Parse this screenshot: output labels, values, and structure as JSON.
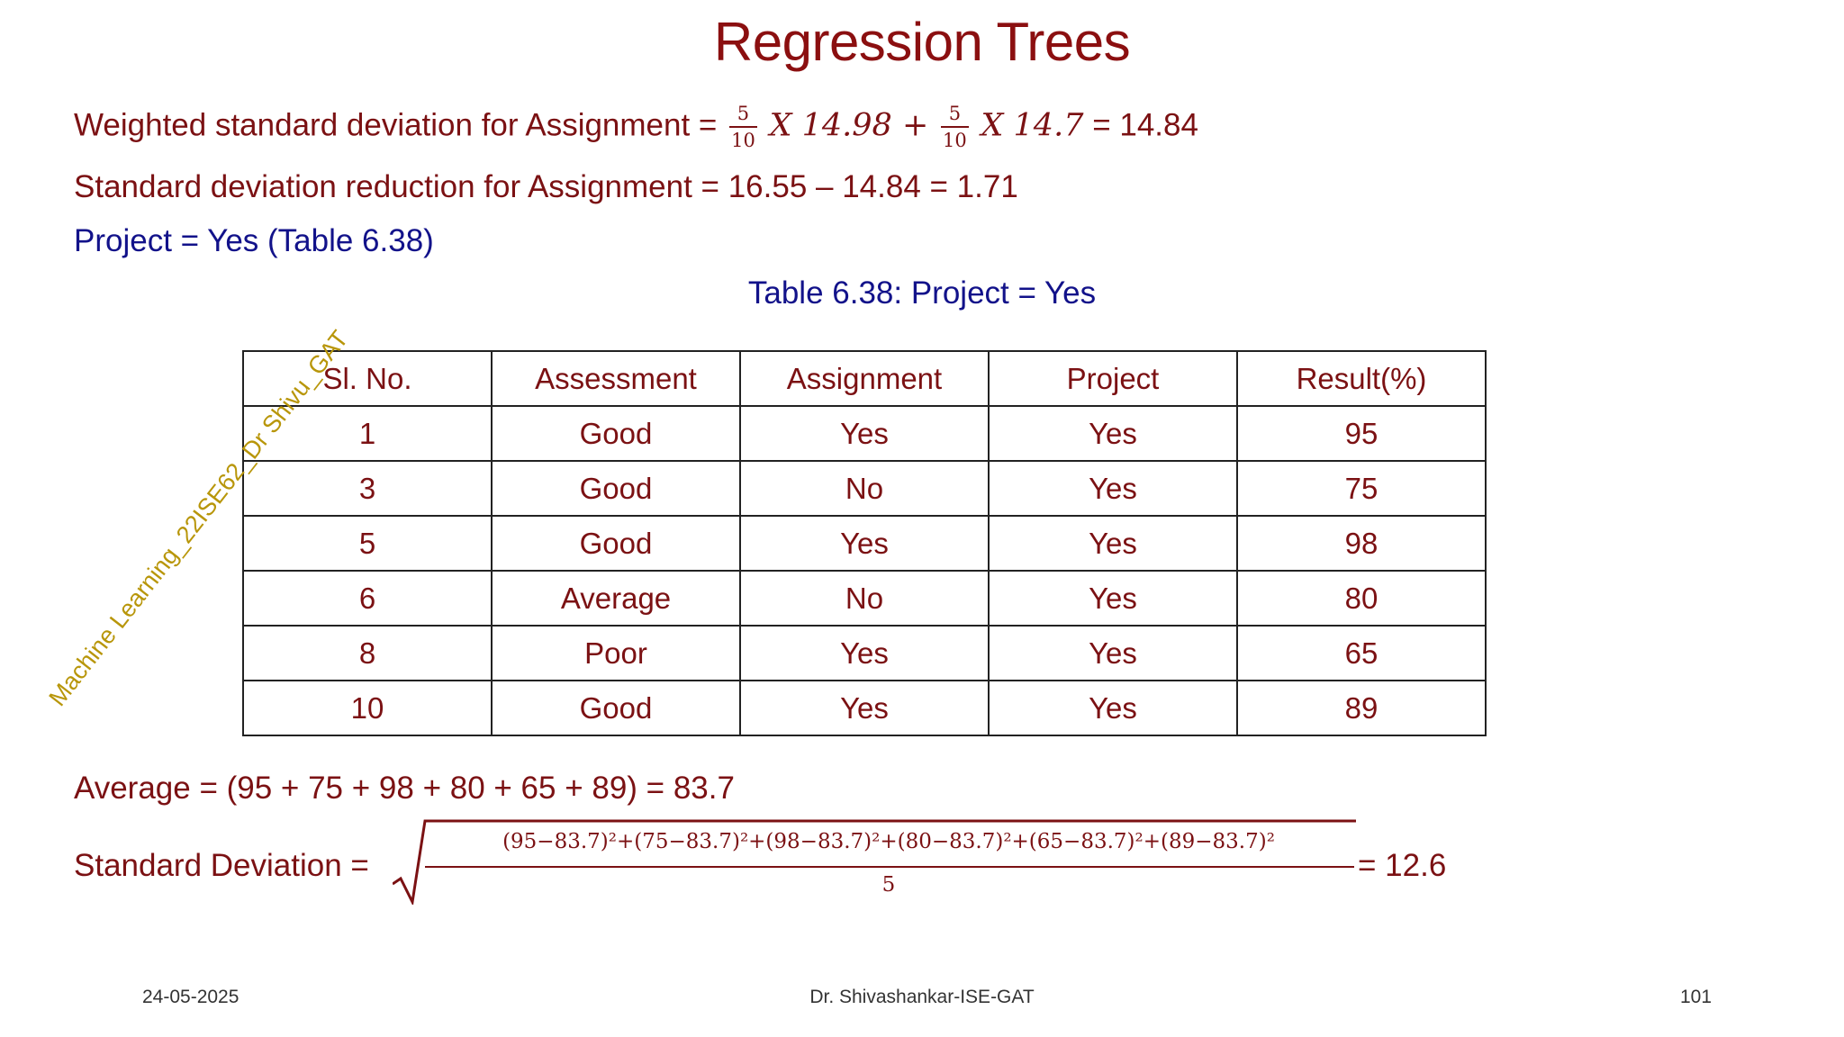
{
  "slide": {
    "title": "Regression Trees",
    "weighted_label": "Weighted standard deviation for Assignment =",
    "w_frac1_num": "5",
    "w_frac1_den": "10",
    "w_term1": "X 14.98 +",
    "w_frac2_num": "5",
    "w_frac2_den": "10",
    "w_term2": "X 14.7",
    "w_result": "= 14.84",
    "sdr_line": "Standard deviation reduction for Assignment = 16.55 – 14.84 = 1.71",
    "project_line": "Project = Yes (Table 6.38)",
    "table_caption": "Table 6.38: Project = Yes",
    "table": {
      "headers": [
        "Sl. No.",
        "Assessment",
        "Assignment",
        "Project",
        "Result(%)"
      ],
      "rows": [
        [
          "1",
          "Good",
          "Yes",
          "Yes",
          "95"
        ],
        [
          "3",
          "Good",
          "No",
          "Yes",
          "75"
        ],
        [
          "5",
          "Good",
          "Yes",
          "Yes",
          "98"
        ],
        [
          "6",
          "Average",
          "No",
          "Yes",
          "80"
        ],
        [
          "8",
          "Poor",
          "Yes",
          "Yes",
          "65"
        ],
        [
          "10",
          "Good",
          "Yes",
          "Yes",
          "89"
        ]
      ]
    },
    "average_line": "Average = (95 + 75 + 98 + 80 + 65 + 89) = 83.7",
    "sd_label": "Standard Deviation =",
    "sd_numerator": "(95−83.7)²+(75−83.7)²+(98−83.7)²+(80−83.7)²+(65−83.7)²+(89−83.7)²",
    "sd_denominator": "5",
    "sd_result": "= 12.6",
    "watermark": "Machine Learning_22ISE62_Dr Shivu_GAT"
  },
  "footer": {
    "date": "24-05-2025",
    "author": "Dr. Shivashankar-ISE-GAT",
    "page": "101"
  }
}
